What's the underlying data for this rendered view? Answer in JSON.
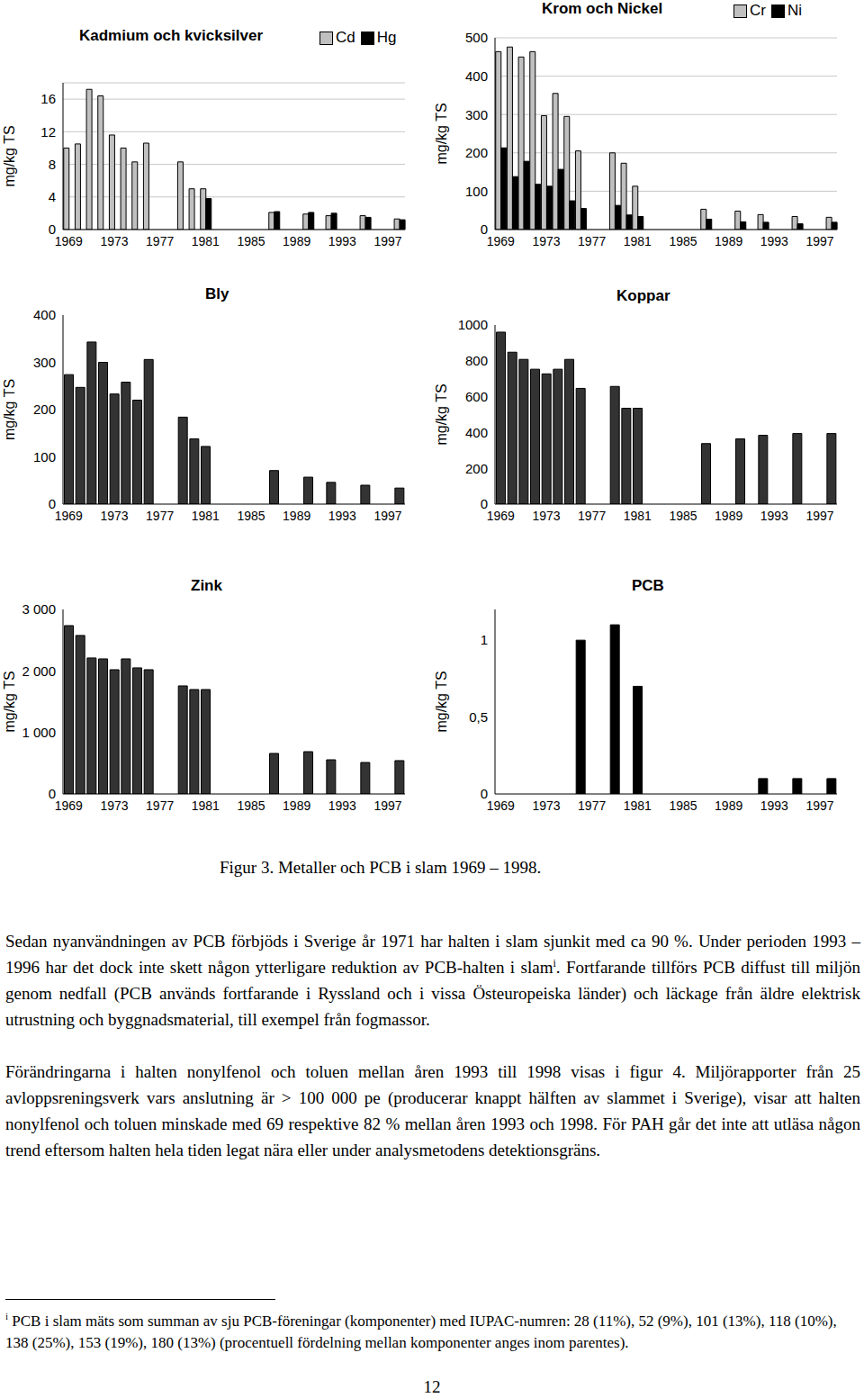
{
  "chart_data": [
    {
      "type": "bar",
      "title": "Kadmium och kvicksilver",
      "y_label": "mg/kg TS",
      "legend": "upper right",
      "grid": true,
      "categories": [
        1969,
        null,
        null,
        null,
        1973,
        null,
        null,
        null,
        1977,
        null,
        null,
        null,
        1981,
        null,
        null,
        null,
        1985,
        null,
        null,
        null,
        1989,
        null,
        null,
        null,
        1993,
        null,
        null,
        null,
        1997,
        null
      ],
      "series": [
        {
          "name": "Cd",
          "color": "#c0c0c0",
          "values": [
            10.0,
            10.5,
            17.2,
            16.4,
            11.6,
            10.0,
            8.3,
            10.6,
            null,
            null,
            8.3,
            5.0,
            5.0,
            null,
            null,
            null,
            null,
            null,
            2.1,
            null,
            null,
            1.9,
            null,
            1.7,
            null,
            null,
            1.7,
            null,
            null,
            1.3
          ]
        },
        {
          "name": "Hg",
          "color": "#000000",
          "values": [
            null,
            null,
            null,
            null,
            null,
            null,
            null,
            null,
            null,
            null,
            null,
            null,
            3.8,
            null,
            null,
            null,
            null,
            null,
            2.2,
            null,
            null,
            2.1,
            null,
            2.0,
            null,
            null,
            1.5,
            null,
            null,
            1.2
          ]
        }
      ],
      "ylim": [
        0,
        18
      ],
      "yticks": [
        0,
        4,
        8,
        12,
        16
      ]
    },
    {
      "type": "bar",
      "title": "Krom och Nickel",
      "y_label": "mg/kg TS",
      "legend": "upper right",
      "grid": true,
      "categories": [
        1969,
        null,
        null,
        null,
        1973,
        null,
        null,
        null,
        1977,
        null,
        null,
        null,
        1981,
        null,
        null,
        null,
        1985,
        null,
        null,
        null,
        1989,
        null,
        null,
        null,
        1993,
        null,
        null,
        null,
        1997,
        null
      ],
      "series": [
        {
          "name": "Cr",
          "color": "#c0c0c0",
          "values": [
            464,
            476,
            450,
            464,
            297,
            355,
            295,
            205,
            null,
            null,
            200,
            173,
            113,
            null,
            null,
            null,
            null,
            null,
            53,
            null,
            null,
            48,
            null,
            39,
            null,
            null,
            34,
            null,
            null,
            32
          ]
        },
        {
          "name": "Ni",
          "color": "#000000",
          "values": [
            213,
            138,
            178,
            118,
            113,
            157,
            75,
            55,
            null,
            null,
            63,
            38,
            34,
            null,
            null,
            null,
            null,
            null,
            27,
            null,
            null,
            20,
            null,
            19,
            null,
            null,
            15,
            null,
            null,
            19
          ]
        }
      ],
      "ylim": [
        0,
        500
      ],
      "yticks": [
        0,
        100,
        200,
        300,
        400,
        500
      ]
    },
    {
      "type": "bar",
      "title": "Bly",
      "y_label": "mg/kg TS",
      "grid": false,
      "color": "#333333",
      "categories": [
        1969,
        null,
        null,
        null,
        1973,
        null,
        null,
        null,
        1977,
        null,
        null,
        null,
        1981,
        null,
        null,
        null,
        1985,
        null,
        null,
        null,
        1989,
        null,
        null,
        null,
        1993,
        null,
        null,
        null,
        1997,
        null
      ],
      "values": [
        274,
        247,
        343,
        300,
        233,
        258,
        220,
        306,
        null,
        null,
        184,
        138,
        122,
        null,
        null,
        null,
        null,
        null,
        71,
        null,
        null,
        57,
        null,
        46,
        null,
        null,
        40,
        null,
        null,
        34
      ],
      "ylim": [
        0,
        400
      ],
      "yticks": [
        0,
        100,
        200,
        300,
        400
      ]
    },
    {
      "type": "bar",
      "title": "Koppar",
      "y_label": "mg/kg TS",
      "grid": false,
      "color": "#333333",
      "categories": [
        1969,
        null,
        null,
        null,
        1973,
        null,
        null,
        null,
        1977,
        null,
        null,
        null,
        1981,
        null,
        null,
        null,
        1985,
        null,
        null,
        null,
        1989,
        null,
        null,
        null,
        1993,
        null,
        null,
        null,
        1997,
        null
      ],
      "values": [
        960,
        848,
        808,
        753,
        727,
        753,
        808,
        646,
        null,
        null,
        657,
        535,
        535,
        null,
        null,
        null,
        null,
        null,
        338,
        null,
        null,
        364,
        null,
        384,
        null,
        null,
        394,
        null,
        null,
        394
      ],
      "ylim": [
        0,
        1000
      ],
      "yticks": [
        0,
        200,
        400,
        600,
        800,
        1000
      ]
    },
    {
      "type": "bar",
      "title": "Zink",
      "y_label": "mg/kg TS",
      "grid": false,
      "color": "#333333",
      "categories": [
        1969,
        null,
        null,
        null,
        1973,
        null,
        null,
        null,
        1977,
        null,
        null,
        null,
        1981,
        null,
        null,
        null,
        1985,
        null,
        null,
        null,
        1989,
        null,
        null,
        null,
        1993,
        null,
        null,
        null,
        1997,
        null
      ],
      "values": [
        2737,
        2577,
        2211,
        2196,
        2020,
        2196,
        2050,
        2020,
        null,
        null,
        1757,
        1698,
        1698,
        null,
        null,
        null,
        null,
        null,
        659,
        null,
        null,
        688,
        null,
        556,
        null,
        null,
        512,
        null,
        null,
        542
      ],
      "ylim": [
        0,
        3000
      ],
      "yticks": [
        0,
        {
          "value": 1000,
          "label": "1 000"
        },
        {
          "value": 2000,
          "label": "2 000"
        },
        {
          "value": 3000,
          "label": "3 000"
        }
      ]
    },
    {
      "type": "bar",
      "title": "PCB",
      "y_label": "mg/kg TS",
      "grid": false,
      "color": "#000000",
      "categories": [
        1969,
        null,
        null,
        null,
        1973,
        null,
        null,
        null,
        1977,
        null,
        null,
        null,
        1981,
        null,
        null,
        null,
        1985,
        null,
        null,
        null,
        1989,
        null,
        null,
        null,
        1993,
        null,
        null,
        null,
        1997,
        null
      ],
      "values": [
        null,
        null,
        null,
        null,
        null,
        null,
        null,
        1.0,
        null,
        null,
        1.1,
        null,
        0.7,
        null,
        null,
        null,
        null,
        null,
        null,
        null,
        null,
        null,
        null,
        0.1,
        null,
        null,
        0.1,
        null,
        null,
        0.1
      ],
      "ylim": [
        0,
        1.2
      ],
      "yticks": [
        0,
        {
          "value": 0.5,
          "label": "0,5"
        },
        1
      ]
    }
  ],
  "caption": "Figur 3. Metaller och PCB i slam 1969 – 1998.",
  "paragraphs": [
    {
      "text": "Sedan nyanvändningen av PCB förbjöds i Sverige år 1971 har halten i slam sjunkit med ca 90 %. Under perioden 1993 – 1996 har det dock inte skett någon ytterligare reduktion av PCB-halten i slam",
      "footnote_mark": "i",
      "text_after": ". Fortfarande tillförs PCB diffust till miljön genom nedfall (PCB används fortfarande i Ryssland och i vissa Östeuropeiska länder) och läckage från äldre elektrisk utrustning och byggnadsmaterial, till exempel från fogmassor."
    },
    {
      "text": "Förändringarna i halten nonylfenol och toluen mellan åren 1993 till 1998 visas i figur 4. Miljörapporter från 25 avloppsreningsverk vars anslutning är > 100 000 pe (producerar knappt hälften av slammet i Sverige), visar att halten nonylfenol och toluen minskade med 69 respektive 82 % mellan åren 1993 och 1998. För PAH går det inte att utläsa någon trend eftersom halten hela tiden legat nära eller under analysmetodens detektionsgräns."
    }
  ],
  "footnote": {
    "mark": "i",
    "text": "PCB i slam mäts som summan av sju PCB-föreningar (komponenter) med IUPAC-numren: 28 (11%), 52 (9%), 101 (13%), 118 (10%), 138 (25%), 153 (19%), 180 (13%) (procentuell fördelning mellan komponenter anges inom parentes)."
  },
  "page_number": "12"
}
